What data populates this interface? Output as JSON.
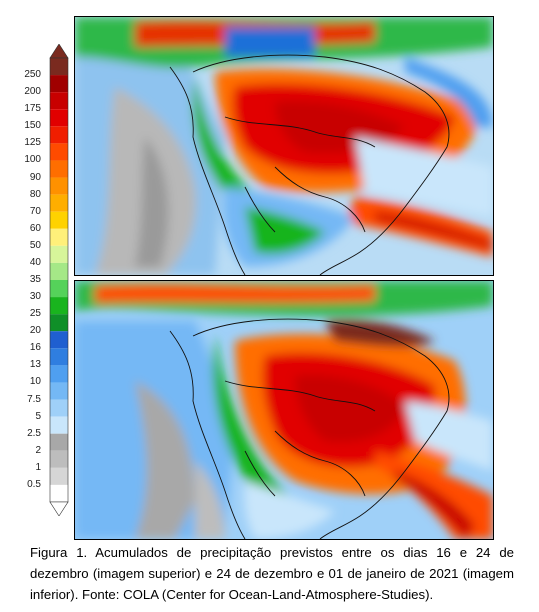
{
  "legend": {
    "ticks": [
      "250",
      "200",
      "175",
      "150",
      "125",
      "100",
      "90",
      "80",
      "70",
      "60",
      "50",
      "40",
      "35",
      "30",
      "25",
      "20",
      "16",
      "13",
      "10",
      "7.5",
      "5",
      "2.5",
      "2",
      "1",
      "0.5"
    ],
    "colors": [
      "#7a2a1f",
      "#a00000",
      "#c80000",
      "#e10000",
      "#f01e00",
      "#ff4b00",
      "#ff6e00",
      "#ff9100",
      "#ffae00",
      "#ffd200",
      "#fff07a",
      "#d7f59a",
      "#a5e887",
      "#55d25a",
      "#19b41e",
      "#0f8f28",
      "#1f5fd0",
      "#2f7ee0",
      "#4f9ff0",
      "#74b8f5",
      "#9fd0f8",
      "#c9e6fb",
      "#a8a8a8",
      "#bdbdbd",
      "#d6d6d6",
      "#ffffff"
    ]
  },
  "maps": [
    {
      "name": "upper"
    },
    {
      "name": "lower"
    }
  ],
  "caption": "Figura 1. Acumulados de precipitação previstos entre os dias 16 e 24 de dezembro (imagem superior) e 24 de dezembro e 01 de janeiro de 2021 (imagem inferior). Fonte: COLA (Center for Ocean-Land-Atmosphere-Studies)."
}
